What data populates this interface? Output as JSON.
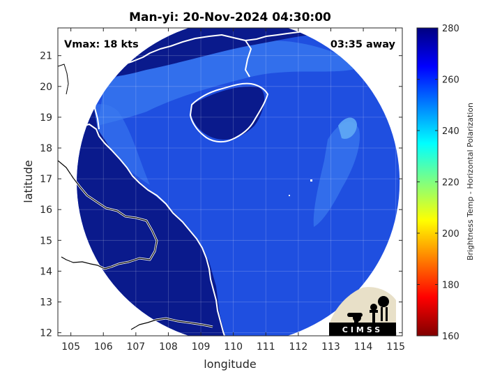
{
  "chart_data": {
    "type": "heatmap",
    "title": "Man-yi: 20-Nov-2024 04:30:00",
    "xlabel": "longitude",
    "ylabel": "latitude",
    "xlim": [
      104.6,
      115.2
    ],
    "ylim": [
      11.9,
      21.9
    ],
    "xticks": [
      "105",
      "106",
      "107",
      "108",
      "109",
      "110",
      "111",
      "112",
      "113",
      "114",
      "115"
    ],
    "yticks": [
      "12",
      "13",
      "14",
      "15",
      "16",
      "17",
      "18",
      "19",
      "20",
      "21"
    ],
    "grid": true,
    "annotations": {
      "vmax": "Vmax: 18 kts",
      "time_away": "03:35 away"
    },
    "colorbar": {
      "label": "Brightness Temp - Horizontal Polarization",
      "ticks": [
        "160",
        "180",
        "200",
        "220",
        "240",
        "260",
        "280"
      ],
      "range": [
        160,
        280
      ],
      "colors": [
        "#800000",
        "#ff0000",
        "#ff8000",
        "#ffff00",
        "#80ff80",
        "#00ffff",
        "#0080ff",
        "#0000ff",
        "#000080"
      ]
    },
    "swath": {
      "center": [
        110.15,
        16.9
      ],
      "radius_deg": 5.25
    },
    "fields": {
      "land_color": "#0a1a8c",
      "ocean_color": "#1f4fe0",
      "coastal_color": "#3a7af0",
      "cloud_color": "#5fa8f5"
    }
  },
  "logo": {
    "text": "CIMSS"
  }
}
